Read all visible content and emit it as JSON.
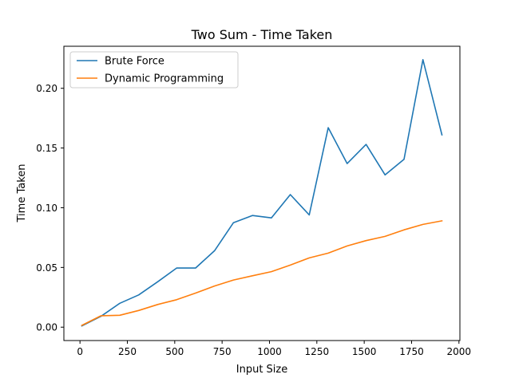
{
  "chart_data": {
    "type": "line",
    "title": "Two Sum - Time Taken",
    "xlabel": "Input Size",
    "ylabel": "Time Taken",
    "xlim": [
      -85,
      2005
    ],
    "ylim": [
      -0.0112,
      0.2352
    ],
    "x_ticks": [
      0,
      250,
      500,
      750,
      1000,
      1250,
      1500,
      1750,
      2000
    ],
    "x_tick_labels": [
      "0",
      "250",
      "500",
      "750",
      "1000",
      "1250",
      "1500",
      "1750",
      "2000"
    ],
    "y_ticks": [
      0.0,
      0.05,
      0.1,
      0.15,
      0.2
    ],
    "y_tick_labels": [
      "0.00",
      "0.05",
      "0.10",
      "0.15",
      "0.20"
    ],
    "grid": false,
    "legend_position": "top-left",
    "x": [
      10,
      110,
      210,
      310,
      410,
      510,
      610,
      710,
      810,
      910,
      1010,
      1110,
      1210,
      1310,
      1410,
      1510,
      1610,
      1710,
      1810,
      1910
    ],
    "series": [
      {
        "name": "Brute Force",
        "color": "#1f77b4",
        "values": [
          0.001,
          0.009,
          0.02,
          0.027,
          0.038,
          0.0495,
          0.0495,
          0.064,
          0.0875,
          0.0935,
          0.0915,
          0.111,
          0.094,
          0.167,
          0.137,
          0.153,
          0.1275,
          0.1405,
          0.224,
          0.161
        ]
      },
      {
        "name": "Dynamic Programming",
        "color": "#ff7f0e",
        "values": [
          0.0015,
          0.0095,
          0.01,
          0.014,
          0.019,
          0.023,
          0.0285,
          0.0345,
          0.0395,
          0.043,
          0.0465,
          0.052,
          0.058,
          0.062,
          0.068,
          0.0725,
          0.076,
          0.0815,
          0.086,
          0.089
        ]
      }
    ]
  }
}
